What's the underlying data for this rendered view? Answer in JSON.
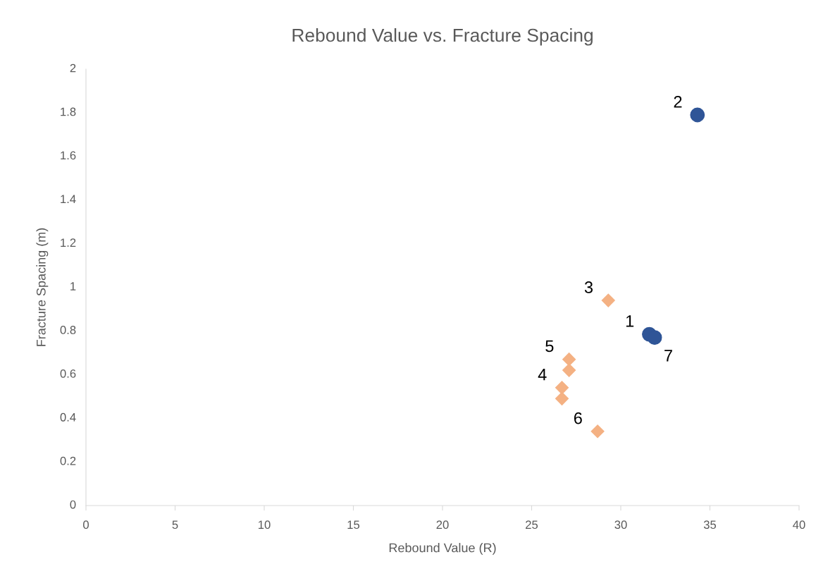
{
  "chart_data": {
    "type": "scatter",
    "title": "Rebound Value vs. Fracture Spacing",
    "xlabel": "Rebound Value (R)",
    "ylabel": "Fracture Spacing (m)",
    "xlim": [
      0,
      40
    ],
    "xticks": [
      0,
      5,
      10,
      15,
      20,
      25,
      30,
      35,
      40
    ],
    "ylim": [
      0,
      2
    ],
    "yticks": [
      0,
      0.2,
      0.4,
      0.6,
      0.8,
      1,
      1.2,
      1.4,
      1.6,
      1.8,
      2
    ],
    "grid": false,
    "legend": false,
    "series": [
      {
        "color": "#2f5597",
        "marker": "circle",
        "x": [
          31.6,
          34.3,
          31.9
        ],
        "values": [
          0.785,
          1.79,
          0.77
        ]
      },
      {
        "color": "#f4b183",
        "marker": "diamond",
        "x": [
          29.3,
          26.7,
          27.1,
          28.7,
          26.7,
          27.1
        ],
        "values": [
          0.94,
          0.54,
          0.67,
          0.34,
          0.49,
          0.62
        ]
      }
    ],
    "annotations": [
      {
        "text": "1",
        "x": 31.6,
        "y": 0.785
      },
      {
        "text": "2",
        "x": 34.3,
        "y": 1.79
      },
      {
        "text": "3",
        "x": 29.3,
        "y": 0.94
      },
      {
        "text": "4",
        "x": 26.7,
        "y": 0.54
      },
      {
        "text": "5",
        "x": 27.1,
        "y": 0.67
      },
      {
        "text": "6",
        "x": 28.7,
        "y": 0.34
      },
      {
        "text": "7",
        "x": 31.9,
        "y": 0.77
      }
    ]
  }
}
